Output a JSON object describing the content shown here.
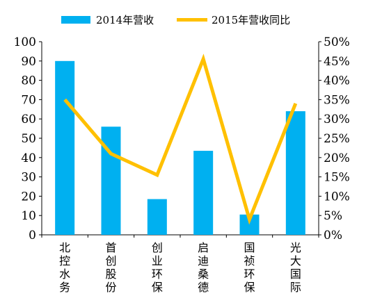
{
  "chart_data": {
    "type": "bar",
    "categories": [
      "北控水务",
      "首创股份",
      "创业环保",
      "启迪桑德",
      "国祯环保",
      "光大国际"
    ],
    "series": [
      {
        "name": "2014年营收",
        "type": "bar",
        "axis": "left",
        "color": "#00b0f0",
        "values": [
          90,
          56,
          18.5,
          43.5,
          10.5,
          64
        ]
      },
      {
        "name": "2015年营收同比",
        "type": "line",
        "axis": "right",
        "color": "#ffc000",
        "values": [
          35,
          21,
          15.5,
          45.5,
          4,
          34
        ]
      }
    ],
    "y_left": {
      "lim": [
        0,
        100
      ],
      "ticks": [
        "0",
        "10",
        "20",
        "30",
        "40",
        "50",
        "60",
        "70",
        "80",
        "90",
        "100"
      ]
    },
    "y_right": {
      "lim": [
        0,
        50
      ],
      "ticks": [
        "0%",
        "5%",
        "10%",
        "15%",
        "20%",
        "25%",
        "30%",
        "35%",
        "40%",
        "45%",
        "50%"
      ]
    },
    "legend_position": "top",
    "grid": false
  }
}
